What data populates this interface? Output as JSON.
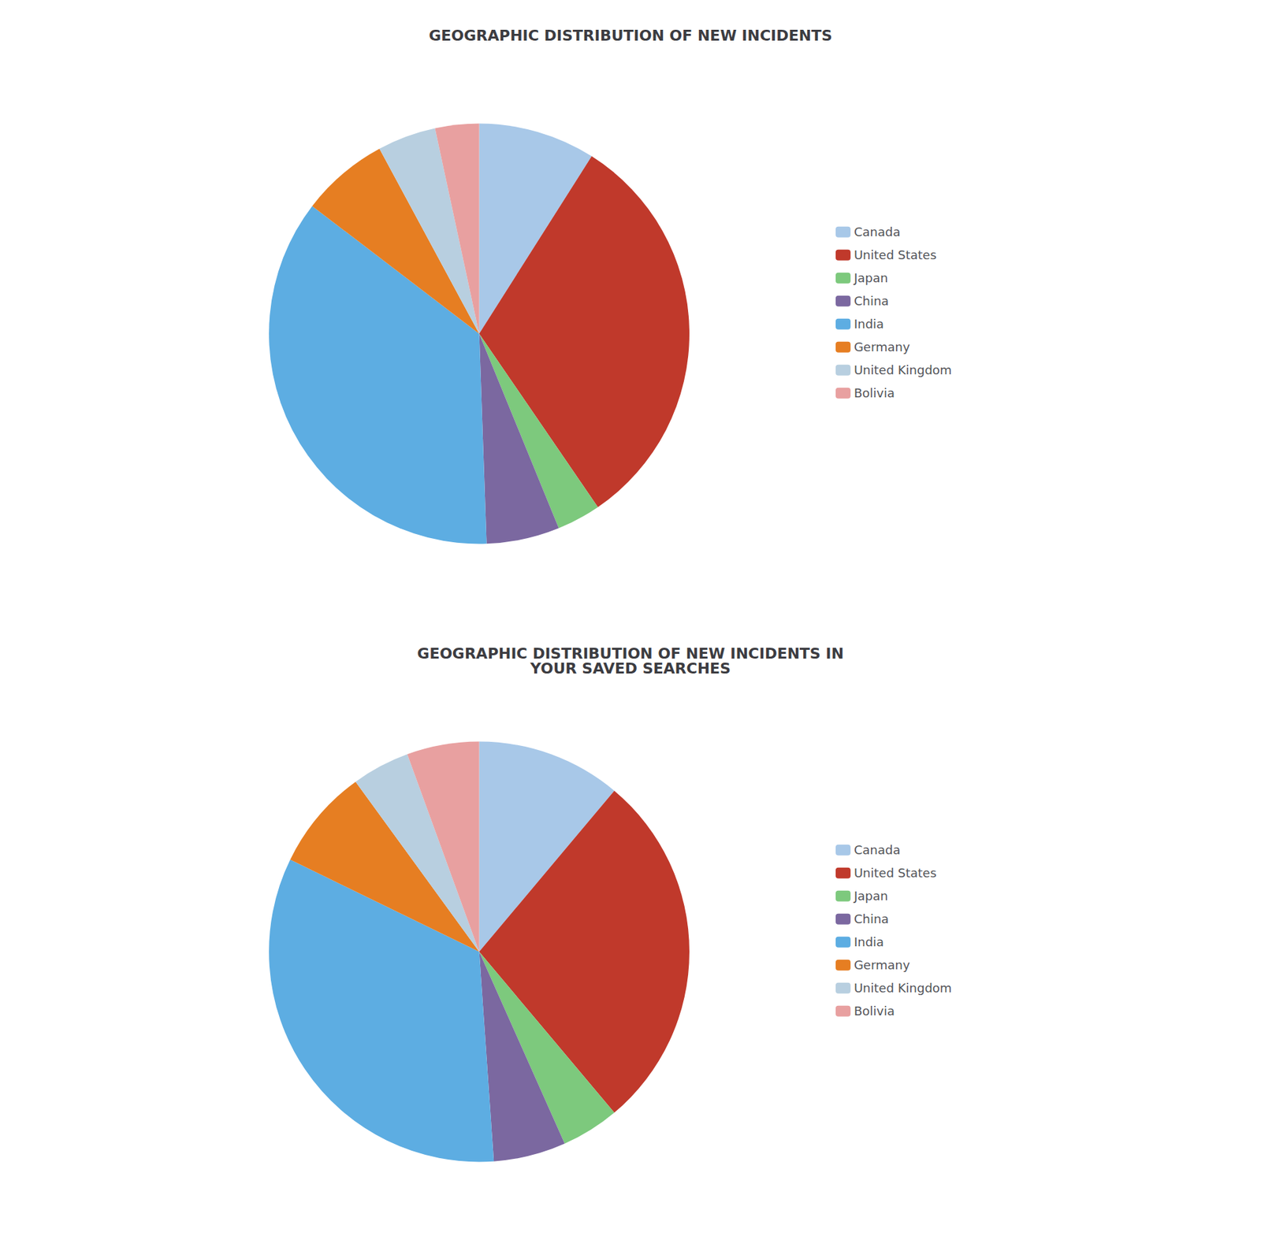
{
  "chart_data": [
    {
      "type": "pie",
      "title": "GEOGRAPHIC DISTRIBUTION OF NEW INCIDENTS",
      "categories": [
        "Canada",
        "United States",
        "Japan",
        "China",
        "India",
        "Germany",
        "United Kingdom",
        "Bolivia"
      ],
      "values": [
        8,
        28,
        3,
        5,
        32,
        6,
        4,
        3
      ],
      "colors": [
        "#a8c8e8",
        "#c0392b",
        "#7dc97d",
        "#7b68a0",
        "#5dade2",
        "#e67e22",
        "#b8cfe0",
        "#e8a0a0"
      ],
      "legend": "right"
    },
    {
      "type": "pie",
      "title": "GEOGRAPHIC DISTRIBUTION OF NEW INCIDENTS IN\nYOUR SAVED SEARCHES",
      "categories": [
        "Canada",
        "United States",
        "Japan",
        "China",
        "India",
        "Germany",
        "United Kingdom",
        "Bolivia"
      ],
      "values": [
        10,
        25,
        4,
        5,
        30,
        7,
        4,
        5
      ],
      "colors": [
        "#a8c8e8",
        "#c0392b",
        "#7dc97d",
        "#7b68a0",
        "#5dade2",
        "#e67e22",
        "#b8cfe0",
        "#e8a0a0"
      ],
      "legend": "right"
    }
  ]
}
